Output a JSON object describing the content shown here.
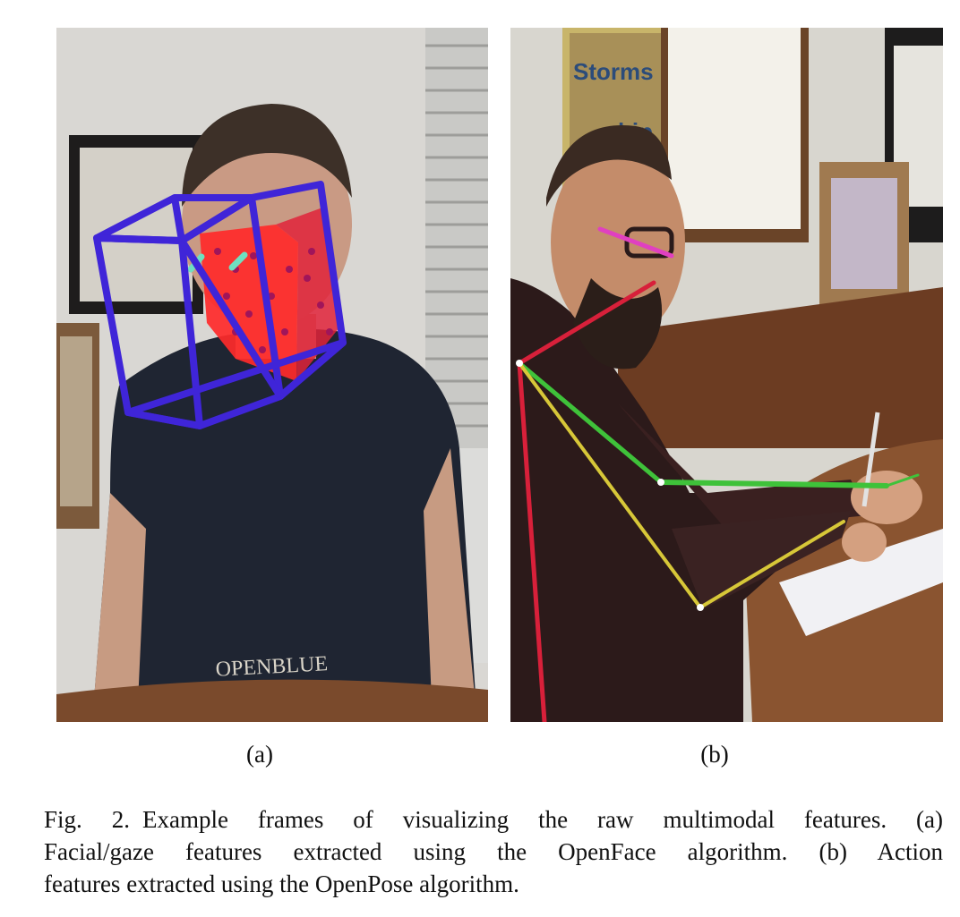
{
  "figure": {
    "panels": [
      {
        "id": "a",
        "label": "(a)",
        "background_text": "OPENBLUE",
        "colors": {
          "head_box": "#3f25d8",
          "face_mesh": "#ff2a2a",
          "gaze": "#6fe0c0"
        }
      },
      {
        "id": "b",
        "label": "(b)",
        "background_text": "Storms",
        "background_text_2": "hip",
        "colors": {
          "neck": "#d8203a",
          "right_arm": "#3fc23a",
          "left_arm": "#d7c738",
          "face": "#e040c0"
        }
      }
    ],
    "caption": {
      "number": "Fig. 2.",
      "lines": [
        "Example frames of visualizing the raw multimodal features. (a)",
        "Facial/gaze features extracted using the OpenFace algorithm. (b) Action",
        "features extracted using the OpenPose algorithm."
      ]
    }
  }
}
